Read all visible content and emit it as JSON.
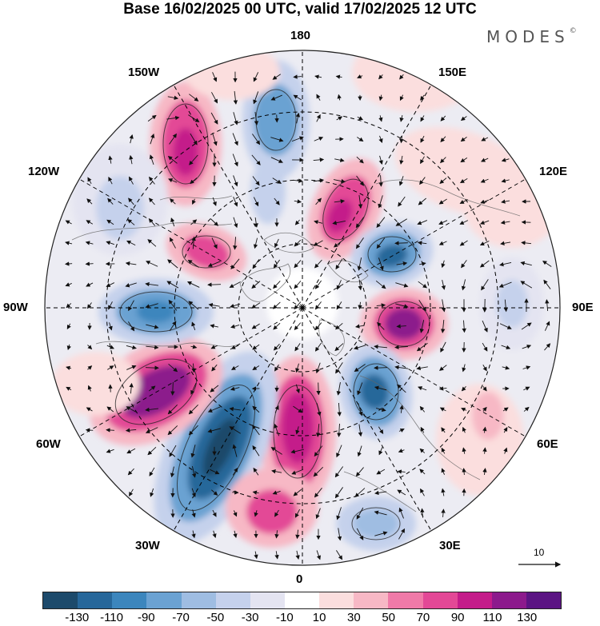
{
  "title": "Base 16/02/2025 00 UTC, valid 17/02/2025 12 UTC",
  "brand": "MODES",
  "brand_mark": "©",
  "map": {
    "projection": "north polar stereographic",
    "longitude_labels": {
      "top": "180",
      "bottom": "0",
      "left": "90W",
      "right": "90E",
      "upper_left_1": "150W",
      "upper_left_2": "120W",
      "lower_left_1": "60W",
      "lower_left_2": "30W",
      "upper_right_1": "150E",
      "upper_right_2": "120E",
      "lower_right_1": "60E",
      "lower_right_2": "30E"
    },
    "reference_vector": {
      "label": "10"
    },
    "gridlines": "dashed",
    "vector_color": "#111111"
  },
  "colorbar": {
    "colors": [
      "#1d4a6b",
      "#27679a",
      "#3c86bd",
      "#6ba2d2",
      "#9fbde2",
      "#c5d1ec",
      "#e4e4f1",
      "#ffffff",
      "#fbdede",
      "#f7b8c5",
      "#f07aa8",
      "#e34896",
      "#c41c8a",
      "#8c1a8c",
      "#5b1483"
    ],
    "tick_labels": [
      "-130",
      "-110",
      "-90",
      "-70",
      "-50",
      "-30",
      "-10",
      "10",
      "30",
      "50",
      "70",
      "90",
      "110",
      "130"
    ]
  }
}
